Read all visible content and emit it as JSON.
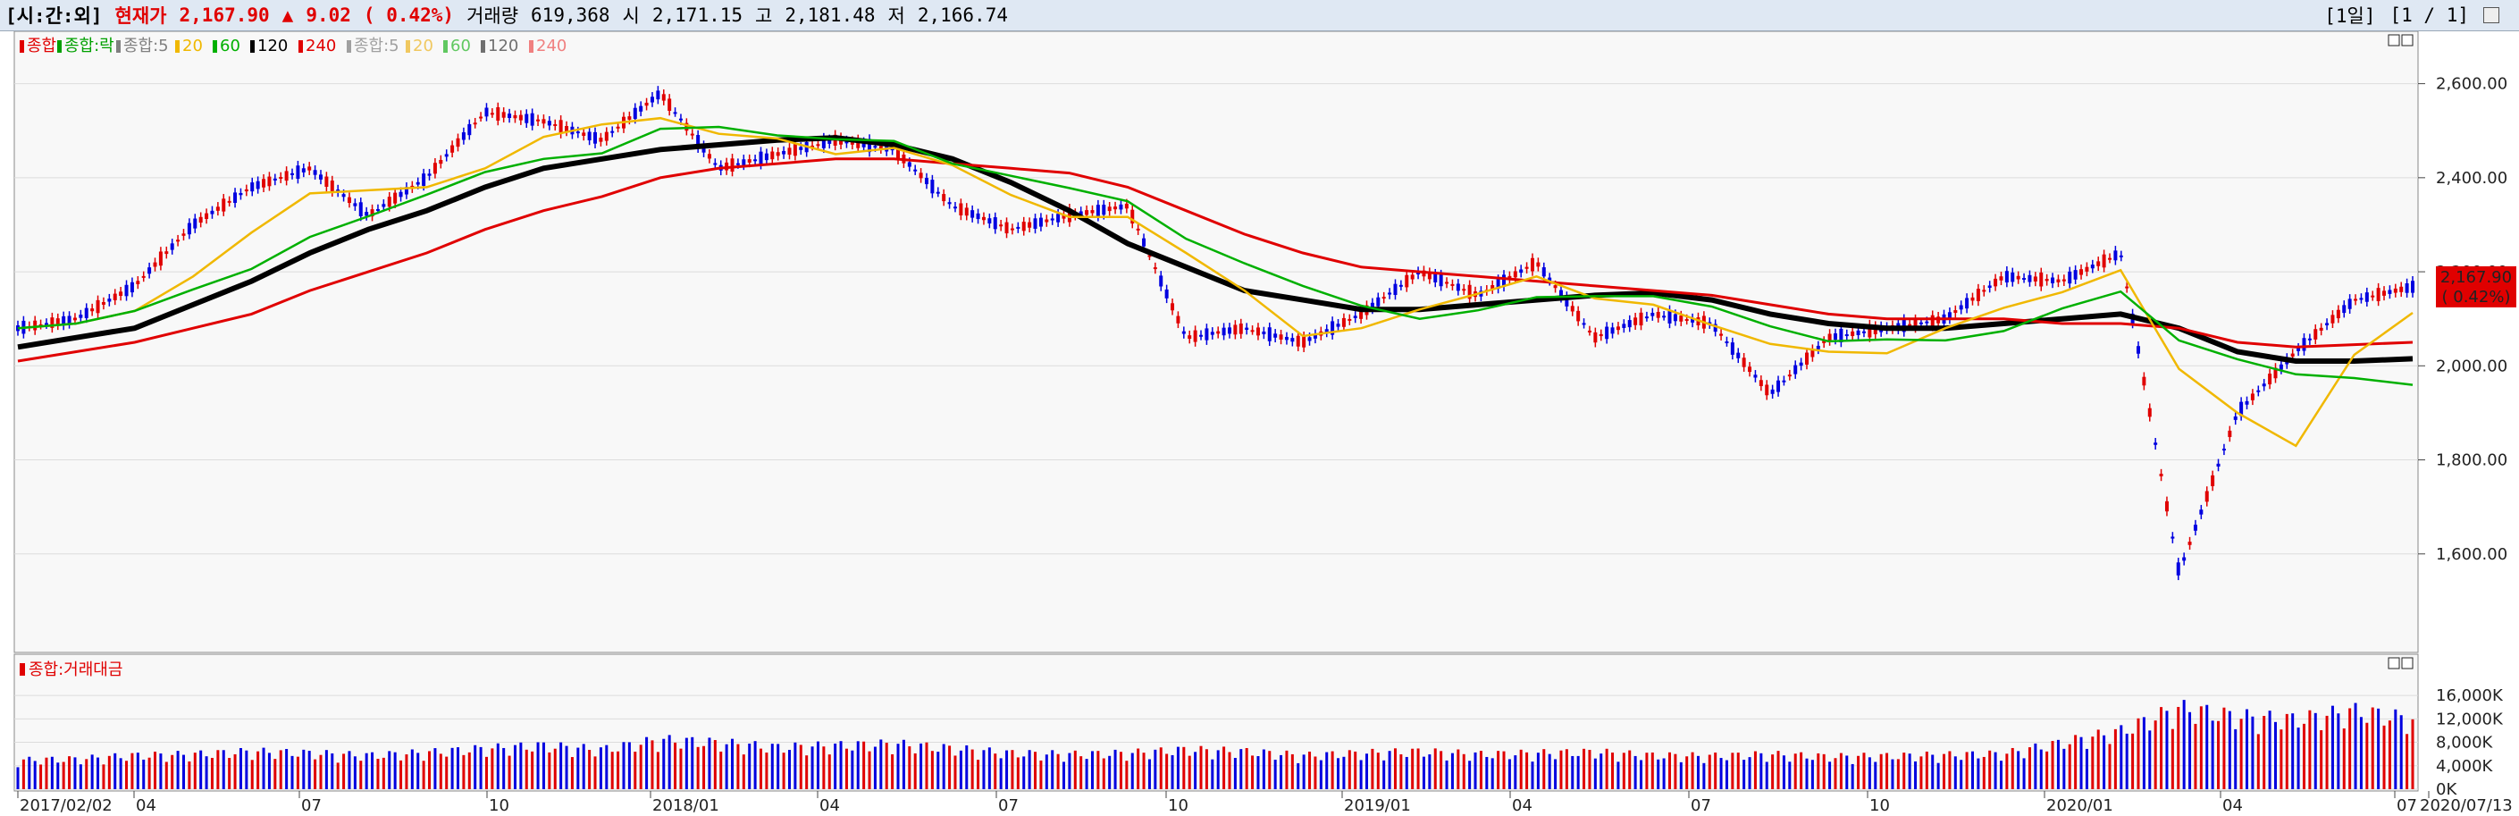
{
  "header": {
    "mode": "[시:간:외]",
    "price_label": "현재가",
    "price": "2,167.90",
    "arrow": "▲",
    "change": "9.02",
    "change_pct": "( 0.42%)",
    "volume_label": "거래량",
    "volume": "619,368",
    "open_label": "시",
    "open": "2,171.15",
    "high_label": "고",
    "high": "2,181.48",
    "low_label": "저",
    "low": "2,166.74",
    "pager_period": "[1일]",
    "pager_page": "[1 / 1]"
  },
  "price_legend": [
    {
      "label": "종합",
      "color": "#e00000"
    },
    {
      "label": "종합:락",
      "color": "#00a000"
    },
    {
      "label": "종합:5",
      "color": "#808080"
    },
    {
      "label": "20",
      "color": "#f0b800"
    },
    {
      "label": "60",
      "color": "#00b000"
    },
    {
      "label": "120",
      "color": "#000000"
    },
    {
      "label": "240",
      "color": "#e00000"
    },
    {
      "label": "종합:5",
      "color": "#a0a0a0"
    },
    {
      "label": "20",
      "color": "#f0c860"
    },
    {
      "label": "60",
      "color": "#60c860"
    },
    {
      "label": "120",
      "color": "#707070"
    },
    {
      "label": "240",
      "color": "#f08080"
    }
  ],
  "volume_legend": {
    "label": "종합:거래대금",
    "color": "#e00000"
  },
  "current_price_tag": {
    "price": "2,167.90",
    "pct": "( 0.42%)"
  },
  "colors": {
    "up": "#e00000",
    "down": "#0000e0",
    "ma5": "#808080",
    "ma20": "#f0b800",
    "ma60": "#00b000",
    "ma120": "#000000",
    "ma240": "#e00000",
    "bg": "#f8f8f8",
    "grid": "#dcdcdc"
  },
  "chart_data": [
    {
      "type": "line",
      "title": "",
      "ylim": [
        1400,
        2700
      ],
      "y_ticks": [
        "2,600.00",
        "2,400.00",
        "2,200.00",
        "2,000.00",
        "1,800.00",
        "1,600.00"
      ],
      "y_tick_values": [
        2600,
        2400,
        2200,
        2000,
        1800,
        1600
      ],
      "x_tick_labels": [
        "2017/02/02",
        "04",
        "07",
        "10",
        "2018/01",
        "04",
        "07",
        "10",
        "2019/01",
        "04",
        "07",
        "10",
        "2020/01",
        "04",
        "07",
        "2020/07/13"
      ],
      "x": [
        "2017-02",
        "2017-03",
        "2017-04",
        "2017-05",
        "2017-06",
        "2017-07",
        "2017-08",
        "2017-09",
        "2017-10",
        "2017-11",
        "2017-12",
        "2018-01",
        "2018-02",
        "2018-03",
        "2018-04",
        "2018-05",
        "2018-06",
        "2018-07",
        "2018-08",
        "2018-09",
        "2018-10",
        "2018-11",
        "2018-12",
        "2019-01",
        "2019-02",
        "2019-03",
        "2019-04",
        "2019-05",
        "2019-06",
        "2019-07",
        "2019-08",
        "2019-09",
        "2019-10",
        "2019-11",
        "2019-12",
        "2020-01",
        "2020-02",
        "2020-03",
        "2020-04",
        "2020-05",
        "2020-06",
        "2020-07"
      ],
      "series": [
        {
          "name": "종합",
          "values": [
            2080,
            2100,
            2170,
            2300,
            2380,
            2420,
            2320,
            2400,
            2540,
            2520,
            2480,
            2580,
            2420,
            2450,
            2480,
            2460,
            2340,
            2290,
            2320,
            2340,
            2060,
            2080,
            2050,
            2110,
            2200,
            2150,
            2220,
            2060,
            2110,
            2090,
            1940,
            2060,
            2080,
            2100,
            2190,
            2180,
            2240,
            1560,
            1900,
            2030,
            2140,
            2168
          ]
        },
        {
          "name": "120",
          "values": [
            2040,
            2060,
            2080,
            2130,
            2180,
            2240,
            2290,
            2330,
            2380,
            2420,
            2440,
            2460,
            2470,
            2480,
            2485,
            2470,
            2440,
            2390,
            2330,
            2260,
            2210,
            2160,
            2140,
            2120,
            2120,
            2130,
            2140,
            2150,
            2155,
            2140,
            2110,
            2090,
            2080,
            2080,
            2090,
            2100,
            2110,
            2080,
            2030,
            2010,
            2010,
            2015
          ]
        },
        {
          "name": "240",
          "values": [
            2010,
            2030,
            2050,
            2080,
            2110,
            2160,
            2200,
            2240,
            2290,
            2330,
            2360,
            2400,
            2420,
            2430,
            2440,
            2440,
            2430,
            2420,
            2410,
            2380,
            2330,
            2280,
            2240,
            2210,
            2200,
            2190,
            2180,
            2170,
            2160,
            2150,
            2130,
            2110,
            2100,
            2100,
            2100,
            2090,
            2090,
            2080,
            2050,
            2040,
            2045,
            2050
          ]
        }
      ]
    },
    {
      "type": "bar",
      "title": "",
      "ylim": [
        0,
        18000
      ],
      "y_ticks": [
        "16,000K",
        "12,000K",
        "8,000K",
        "4,000K",
        "0K"
      ],
      "y_tick_values": [
        16000,
        12000,
        8000,
        4000,
        0
      ],
      "series": [
        {
          "name": "종합:거래대금",
          "values": [
            5000,
            5200,
            5800,
            6000,
            6500,
            6200,
            5800,
            6300,
            7000,
            7500,
            6800,
            8500,
            8000,
            7200,
            7500,
            7800,
            7000,
            6200,
            6000,
            6200,
            6800,
            6500,
            5800,
            6200,
            6500,
            6000,
            6200,
            6400,
            5800,
            5700,
            6000,
            5600,
            5700,
            5900,
            6100,
            8000,
            10000,
            14000,
            12500,
            12000,
            13500,
            12000
          ]
        }
      ]
    }
  ]
}
